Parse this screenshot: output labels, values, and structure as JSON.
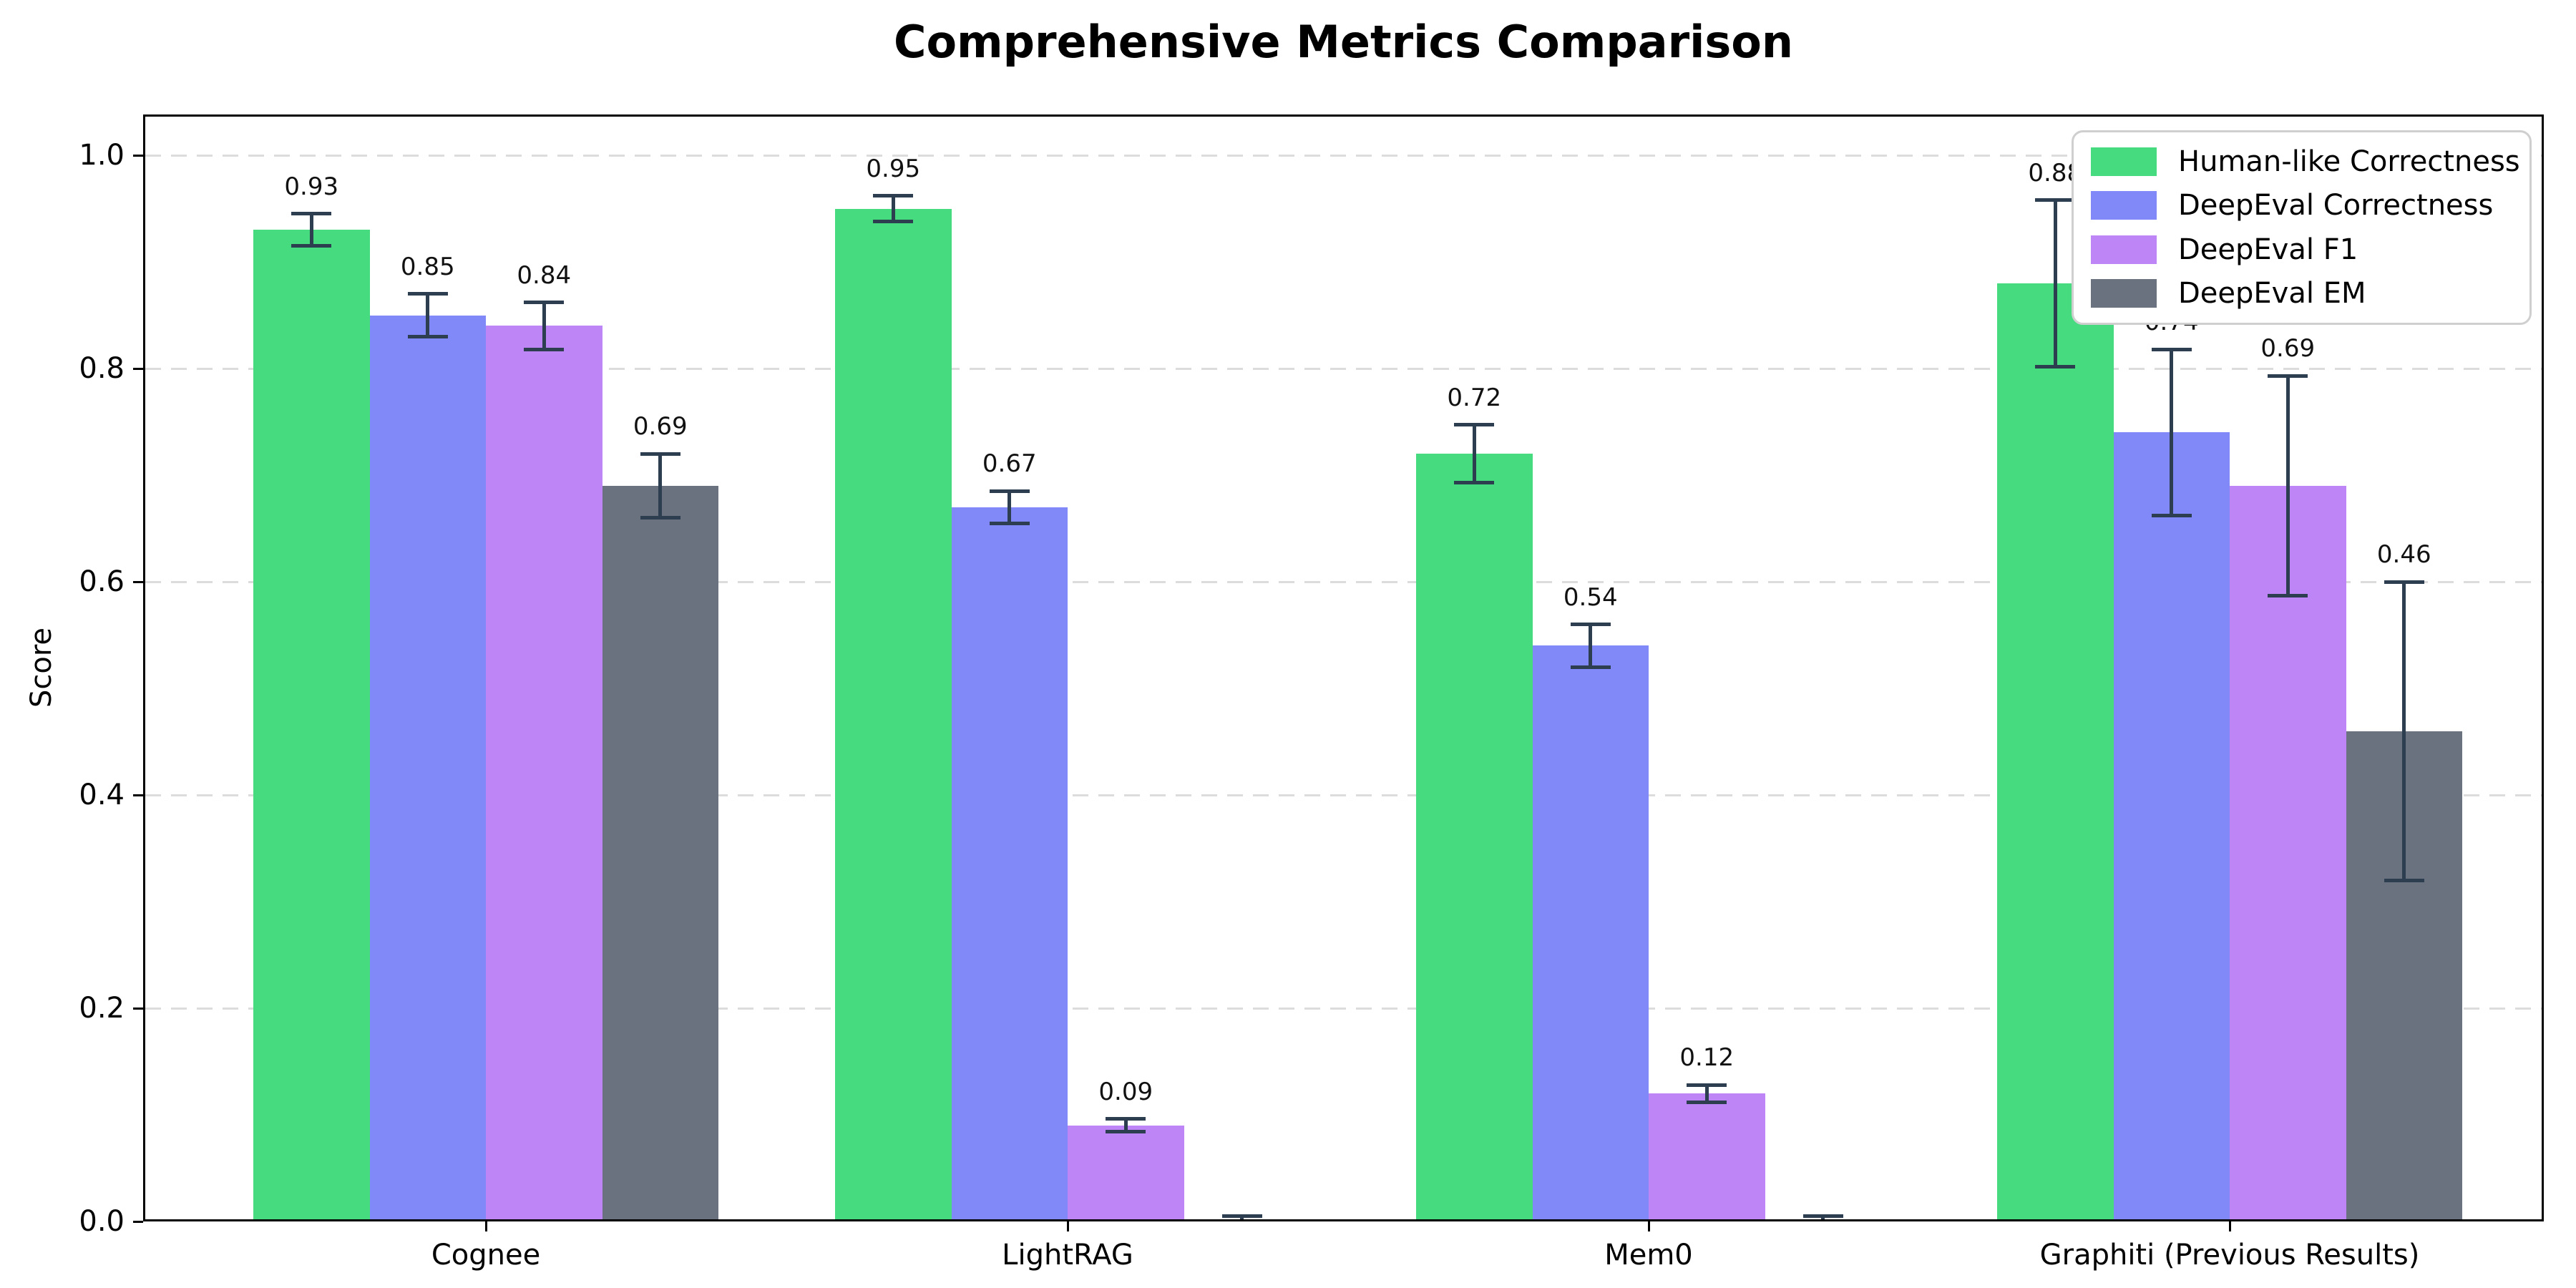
{
  "chart_data": {
    "type": "bar",
    "title": "Comprehensive Metrics Comparison",
    "xlabel": "",
    "ylabel": "Score",
    "categories": [
      "Cognee",
      "LightRAG",
      "Mem0",
      "Graphiti (Previous Results)"
    ],
    "series": [
      {
        "name": "Human-like Correctness",
        "color": "#47db80",
        "values": [
          0.93,
          0.95,
          0.72,
          0.88
        ],
        "errors": [
          0.015,
          0.012,
          0.027,
          0.078
        ],
        "labels": [
          "0.93",
          "0.95",
          "0.72",
          "0.88"
        ]
      },
      {
        "name": "DeepEval Correctness",
        "color": "#8089f7",
        "values": [
          0.85,
          0.67,
          0.54,
          0.74
        ],
        "errors": [
          0.02,
          0.015,
          0.02,
          0.078
        ],
        "labels": [
          "0.85",
          "0.67",
          "0.54",
          "0.74"
        ]
      },
      {
        "name": "DeepEval F1",
        "color": "#bd85f5",
        "values": [
          0.84,
          0.09,
          0.12,
          0.69
        ],
        "errors": [
          0.022,
          0.006,
          0.008,
          0.103
        ],
        "labels": [
          "0.84",
          "0.09",
          "0.12",
          "0.69"
        ]
      },
      {
        "name": "DeepEval EM",
        "color": "#6a7280",
        "values": [
          0.69,
          0.0,
          0.0,
          0.46
        ],
        "errors": [
          0.03,
          0.005,
          0.005,
          0.14
        ],
        "labels": [
          "0.69",
          "",
          "",
          "0.46"
        ]
      }
    ],
    "ylim": [
      0.0,
      1.04
    ],
    "yticks": [
      0.0,
      0.2,
      0.4,
      0.6,
      0.8,
      1.0
    ],
    "ytick_labels": [
      "0.0",
      "0.2",
      "0.4",
      "0.6",
      "0.8",
      "1.0"
    ],
    "grid": "horizontal-dashed",
    "grid_color": "#dcdcdc",
    "legend_position": "upper right",
    "error_bar_color": "#2c3e50",
    "axis_color": "#000000",
    "background_color": "#ffffff"
  }
}
